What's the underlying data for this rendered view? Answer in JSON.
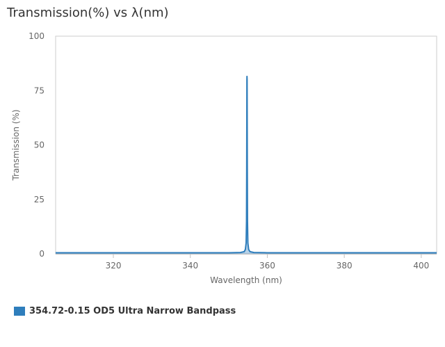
{
  "chart_data": {
    "type": "line",
    "title": "Transmission(%) vs λ(nm)",
    "xlabel": "Wavelength (nm)",
    "ylabel": "Transmission (%)",
    "xlim": [
      305,
      404
    ],
    "ylim": [
      0,
      100
    ],
    "xticks": [
      320,
      340,
      360,
      380,
      400
    ],
    "yticks": [
      0,
      25,
      50,
      75,
      100
    ],
    "grid": false,
    "legend_position": "bottom-left",
    "series": [
      {
        "name": "354.72-0.15 OD5 Ultra Narrow Bandpass",
        "color": "#2f7ebc",
        "x": [
          305,
          340,
          350,
          353,
          354,
          354.3,
          354.5,
          354.6,
          354.65,
          354.7,
          354.72,
          354.75,
          354.8,
          354.85,
          354.95,
          355.15,
          355.5,
          356.5,
          360,
          370,
          404
        ],
        "y": [
          0.5,
          0.5,
          0.5,
          0.6,
          1.0,
          2.0,
          5.0,
          15.0,
          40.0,
          80.0,
          81.5,
          80.0,
          40.0,
          15.0,
          5.0,
          2.0,
          1.0,
          0.6,
          0.5,
          0.5,
          0.5
        ]
      }
    ]
  }
}
